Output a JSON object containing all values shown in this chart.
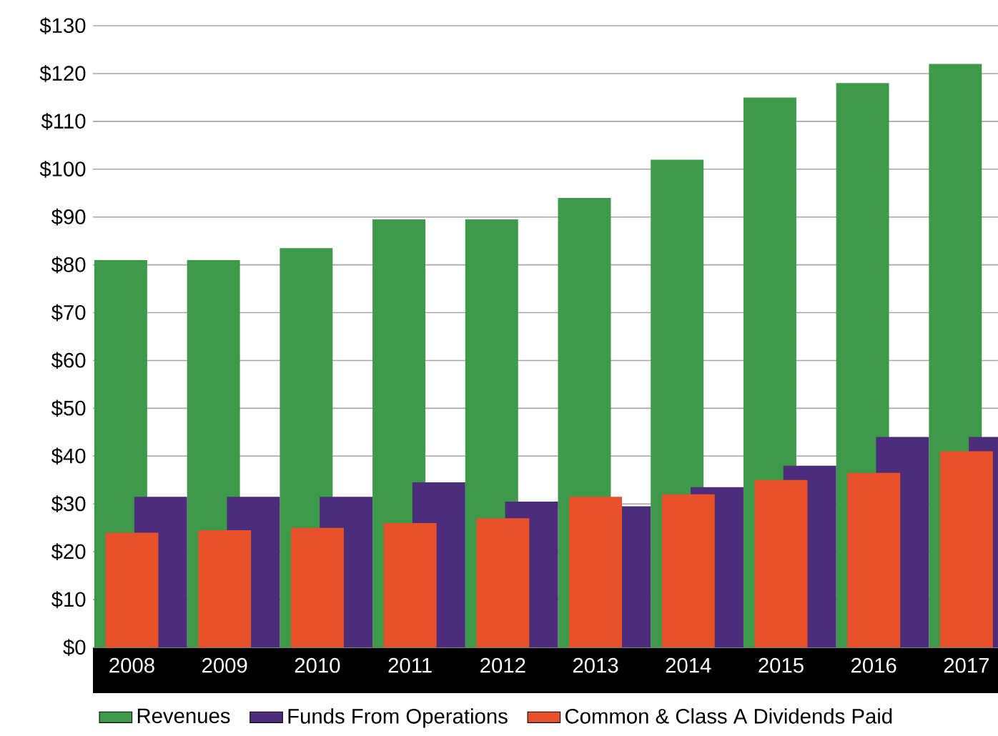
{
  "chart_data": {
    "type": "bar",
    "categories": [
      "2008",
      "2009",
      "2010",
      "2011",
      "2012",
      "2013",
      "2014",
      "2015",
      "2016",
      "2017"
    ],
    "series": [
      {
        "name": "Revenues",
        "color": "#3c9a48",
        "values": [
          81,
          81,
          83.5,
          89.5,
          89.5,
          94,
          102,
          115,
          118,
          122
        ]
      },
      {
        "name": "Funds From Operations",
        "color": "#4e2c7c",
        "values": [
          31.5,
          31.5,
          31.5,
          34.5,
          30.5,
          29.5,
          33.5,
          38,
          44,
          44
        ]
      },
      {
        "name": "Common & Class A Dividends Paid",
        "color": "#e8522a",
        "values": [
          24,
          24.5,
          25,
          26,
          27,
          31.5,
          32,
          35,
          36.5,
          41
        ]
      }
    ],
    "ylim": [
      0,
      130
    ],
    "yticks": [
      {
        "value": 0,
        "label": "$0"
      },
      {
        "value": 10,
        "label": "$10"
      },
      {
        "value": 20,
        "label": "$20"
      },
      {
        "value": 30,
        "label": "$30"
      },
      {
        "value": 40,
        "label": "$40"
      },
      {
        "value": 50,
        "label": "$50"
      },
      {
        "value": 60,
        "label": "$60"
      },
      {
        "value": 70,
        "label": "$70"
      },
      {
        "value": 80,
        "label": "$80"
      },
      {
        "value": 90,
        "label": "$90"
      },
      {
        "value": 100,
        "label": "$100"
      },
      {
        "value": 110,
        "label": "$110"
      },
      {
        "value": 120,
        "label": "$120"
      },
      {
        "value": 130,
        "label": "$130"
      }
    ],
    "grid": "y",
    "legend": "bottom"
  }
}
